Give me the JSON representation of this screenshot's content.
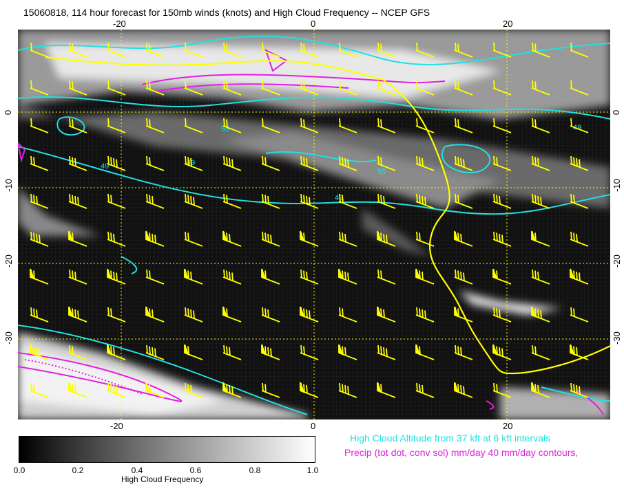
{
  "title": "15060818, 114 hour forecast for 150mb winds (knots) and High Cloud Frequency -- NCEP GFS",
  "map": {
    "x_ticks": [
      "-20",
      "0",
      "20"
    ],
    "y_ticks": [
      "0",
      "-10",
      "-20",
      "-30"
    ],
    "contour_labels": [
      "49",
      "49",
      "55",
      "49",
      "55",
      "49"
    ],
    "colors": {
      "cloud_altitude": "#22e0e0",
      "precip": "#e020e0",
      "coast_and_barbs": "#ffff00",
      "grid": "#ffff00"
    }
  },
  "legend": {
    "cloud_altitude": "High Cloud Altitude from 37 kft at 6 kft intervals",
    "precip": "Precip (tot dot, conv sol) mm/day 40 mm/day contours,"
  },
  "colorbar": {
    "label": "High Cloud Frequency",
    "ticks": [
      "0.0",
      "0.2",
      "0.4",
      "0.6",
      "0.8",
      "1.0"
    ]
  }
}
